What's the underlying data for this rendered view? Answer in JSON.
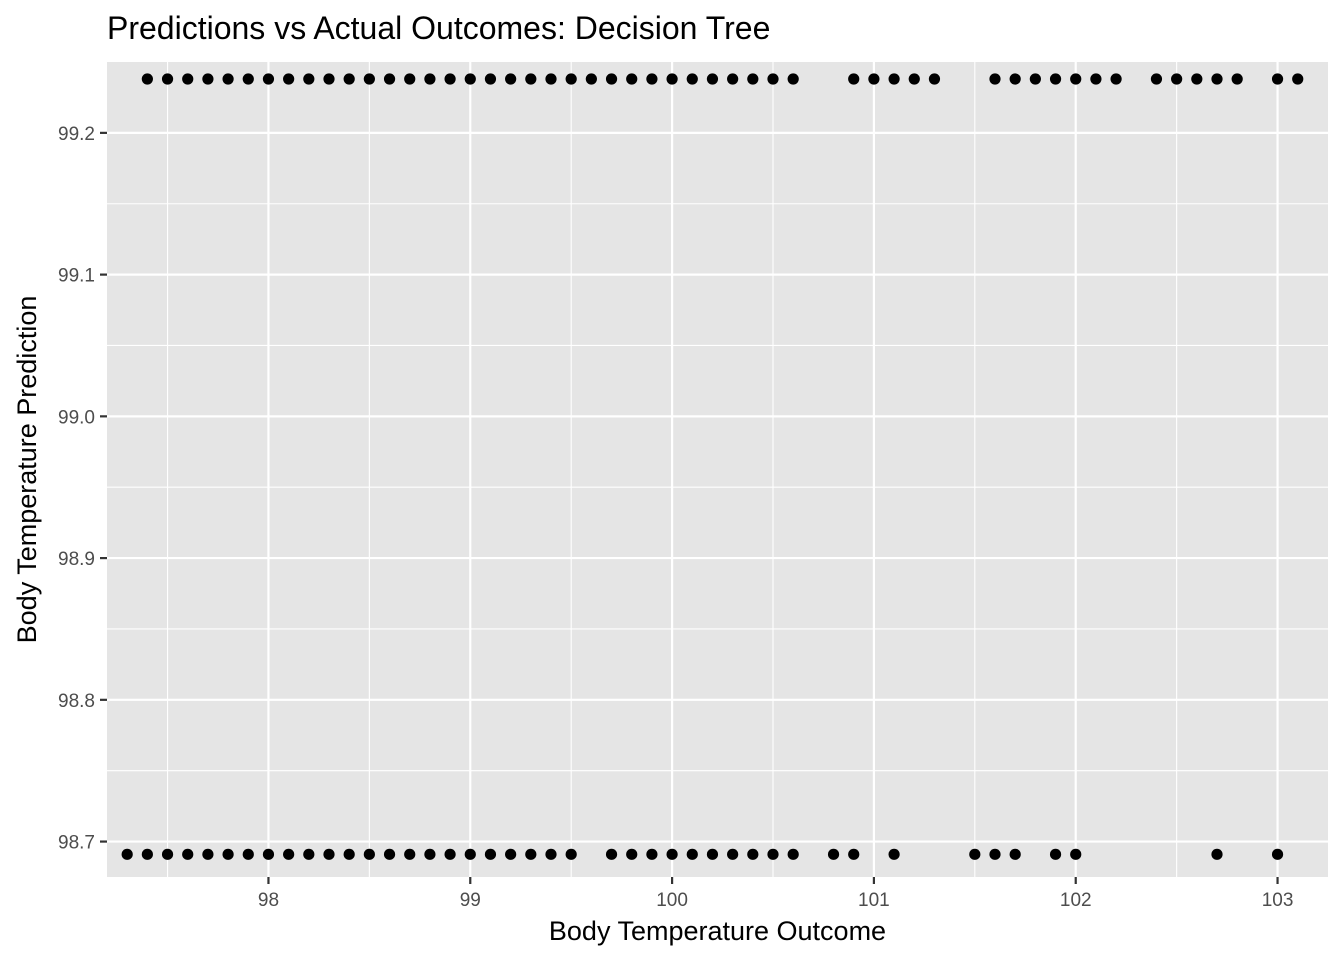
{
  "chart_data": {
    "type": "scatter",
    "title": "Predictions vs Actual Outcomes: Decision Tree",
    "xlabel": "Body Temperature Outcome",
    "ylabel": "Body Temperature Prediction",
    "xlim": [
      97.2,
      103.25
    ],
    "ylim": [
      98.675,
      99.25
    ],
    "x_ticks": [
      98,
      99,
      100,
      101,
      102,
      103
    ],
    "x_tick_labels": [
      "98",
      "99",
      "100",
      "101",
      "102",
      "103"
    ],
    "y_ticks": [
      98.7,
      98.8,
      98.9,
      99.0,
      99.1,
      99.2
    ],
    "y_tick_labels": [
      "98.7",
      "98.8",
      "98.9",
      "99.0",
      "99.1",
      "99.2"
    ],
    "grid": true,
    "legend": "none",
    "colors": {
      "panel": "#e5e5e5",
      "grid": "#ffffff",
      "point": "#000000",
      "tick_text": "#4d4d4d"
    },
    "series": [
      {
        "points": [
          {
            "x": 97.4,
            "y": 99.238
          },
          {
            "x": 97.5,
            "y": 99.238
          },
          {
            "x": 97.6,
            "y": 99.238
          },
          {
            "x": 97.7,
            "y": 99.238
          },
          {
            "x": 97.8,
            "y": 99.238
          },
          {
            "x": 97.9,
            "y": 99.238
          },
          {
            "x": 98.0,
            "y": 99.238
          },
          {
            "x": 98.1,
            "y": 99.238
          },
          {
            "x": 98.2,
            "y": 99.238
          },
          {
            "x": 98.3,
            "y": 99.238
          },
          {
            "x": 98.4,
            "y": 99.238
          },
          {
            "x": 98.5,
            "y": 99.238
          },
          {
            "x": 98.6,
            "y": 99.238
          },
          {
            "x": 98.7,
            "y": 99.238
          },
          {
            "x": 98.8,
            "y": 99.238
          },
          {
            "x": 98.9,
            "y": 99.238
          },
          {
            "x": 99.0,
            "y": 99.238
          },
          {
            "x": 99.1,
            "y": 99.238
          },
          {
            "x": 99.2,
            "y": 99.238
          },
          {
            "x": 99.3,
            "y": 99.238
          },
          {
            "x": 99.4,
            "y": 99.238
          },
          {
            "x": 99.5,
            "y": 99.238
          },
          {
            "x": 99.6,
            "y": 99.238
          },
          {
            "x": 99.7,
            "y": 99.238
          },
          {
            "x": 99.8,
            "y": 99.238
          },
          {
            "x": 99.9,
            "y": 99.238
          },
          {
            "x": 100.0,
            "y": 99.238
          },
          {
            "x": 100.1,
            "y": 99.238
          },
          {
            "x": 100.2,
            "y": 99.238
          },
          {
            "x": 100.3,
            "y": 99.238
          },
          {
            "x": 100.4,
            "y": 99.238
          },
          {
            "x": 100.5,
            "y": 99.238
          },
          {
            "x": 100.6,
            "y": 99.238
          },
          {
            "x": 100.9,
            "y": 99.238
          },
          {
            "x": 101.0,
            "y": 99.238
          },
          {
            "x": 101.1,
            "y": 99.238
          },
          {
            "x": 101.2,
            "y": 99.238
          },
          {
            "x": 101.3,
            "y": 99.238
          },
          {
            "x": 101.6,
            "y": 99.238
          },
          {
            "x": 101.7,
            "y": 99.238
          },
          {
            "x": 101.8,
            "y": 99.238
          },
          {
            "x": 101.9,
            "y": 99.238
          },
          {
            "x": 102.0,
            "y": 99.238
          },
          {
            "x": 102.1,
            "y": 99.238
          },
          {
            "x": 102.2,
            "y": 99.238
          },
          {
            "x": 102.4,
            "y": 99.238
          },
          {
            "x": 102.5,
            "y": 99.238
          },
          {
            "x": 102.6,
            "y": 99.238
          },
          {
            "x": 102.7,
            "y": 99.238
          },
          {
            "x": 102.8,
            "y": 99.238
          },
          {
            "x": 103.0,
            "y": 99.238
          },
          {
            "x": 103.1,
            "y": 99.238
          },
          {
            "x": 97.3,
            "y": 98.691
          },
          {
            "x": 97.4,
            "y": 98.691
          },
          {
            "x": 97.5,
            "y": 98.691
          },
          {
            "x": 97.6,
            "y": 98.691
          },
          {
            "x": 97.7,
            "y": 98.691
          },
          {
            "x": 97.8,
            "y": 98.691
          },
          {
            "x": 97.9,
            "y": 98.691
          },
          {
            "x": 98.0,
            "y": 98.691
          },
          {
            "x": 98.1,
            "y": 98.691
          },
          {
            "x": 98.2,
            "y": 98.691
          },
          {
            "x": 98.3,
            "y": 98.691
          },
          {
            "x": 98.4,
            "y": 98.691
          },
          {
            "x": 98.5,
            "y": 98.691
          },
          {
            "x": 98.6,
            "y": 98.691
          },
          {
            "x": 98.7,
            "y": 98.691
          },
          {
            "x": 98.8,
            "y": 98.691
          },
          {
            "x": 98.9,
            "y": 98.691
          },
          {
            "x": 99.0,
            "y": 98.691
          },
          {
            "x": 99.1,
            "y": 98.691
          },
          {
            "x": 99.2,
            "y": 98.691
          },
          {
            "x": 99.3,
            "y": 98.691
          },
          {
            "x": 99.4,
            "y": 98.691
          },
          {
            "x": 99.5,
            "y": 98.691
          },
          {
            "x": 99.7,
            "y": 98.691
          },
          {
            "x": 99.8,
            "y": 98.691
          },
          {
            "x": 99.9,
            "y": 98.691
          },
          {
            "x": 100.0,
            "y": 98.691
          },
          {
            "x": 100.1,
            "y": 98.691
          },
          {
            "x": 100.2,
            "y": 98.691
          },
          {
            "x": 100.3,
            "y": 98.691
          },
          {
            "x": 100.4,
            "y": 98.691
          },
          {
            "x": 100.5,
            "y": 98.691
          },
          {
            "x": 100.6,
            "y": 98.691
          },
          {
            "x": 100.8,
            "y": 98.691
          },
          {
            "x": 100.9,
            "y": 98.691
          },
          {
            "x": 101.1,
            "y": 98.691
          },
          {
            "x": 101.5,
            "y": 98.691
          },
          {
            "x": 101.6,
            "y": 98.691
          },
          {
            "x": 101.7,
            "y": 98.691
          },
          {
            "x": 101.9,
            "y": 98.691
          },
          {
            "x": 102.0,
            "y": 98.691
          },
          {
            "x": 102.7,
            "y": 98.691
          },
          {
            "x": 103.0,
            "y": 98.691
          }
        ]
      }
    ]
  }
}
